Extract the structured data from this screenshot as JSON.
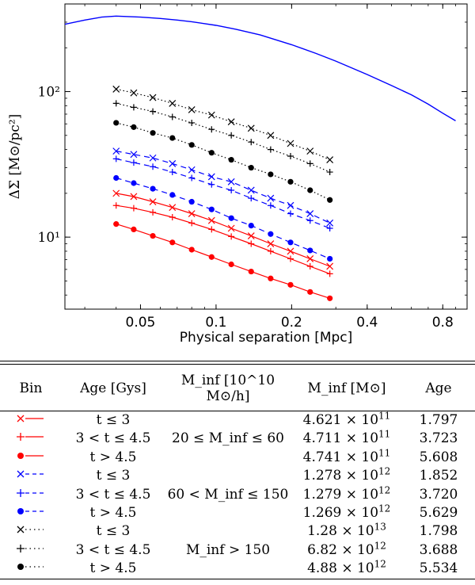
{
  "chart_data": {
    "type": "line",
    "xscale": "log",
    "yscale": "log",
    "xlabel": "Physical separation [Mpc]",
    "ylabel": "ΔΣ [M⊙/pc²]",
    "xlim": [
      0.025,
      1.0
    ],
    "ylim": [
      3.2,
      400
    ],
    "xticks": [
      0.05,
      0.1,
      0.2,
      0.4,
      0.8
    ],
    "xtick_labels": [
      "0.05",
      "0.1",
      "0.2",
      "0.4",
      "0.8"
    ],
    "yticks": [
      10,
      100
    ],
    "ytick_labels": [
      "10¹",
      "10²"
    ],
    "series": [
      {
        "color": "#0000ff",
        "style": "solid",
        "marker": "none",
        "x": [
          0.025,
          0.03,
          0.035,
          0.04,
          0.05,
          0.06,
          0.07,
          0.08,
          0.1,
          0.12,
          0.15,
          0.2,
          0.25,
          0.3,
          0.4,
          0.5,
          0.6,
          0.7,
          0.8,
          0.9
        ],
        "y": [
          290,
          310,
          325,
          330,
          325,
          318,
          310,
          302,
          285,
          268,
          245,
          210,
          183,
          162,
          131,
          110,
          95,
          82,
          71,
          63
        ]
      },
      {
        "color": "#000000",
        "style": "dotted",
        "marker": "x",
        "x": [
          0.04,
          0.047,
          0.056,
          0.067,
          0.08,
          0.096,
          0.115,
          0.138,
          0.165,
          0.198,
          0.237,
          0.284
        ],
        "y": [
          104,
          98,
          91,
          83,
          75,
          69,
          62,
          56,
          50,
          44,
          39,
          34
        ],
        "err": [
          0,
          0,
          0,
          0,
          0,
          0,
          0,
          0,
          0,
          0,
          0,
          0
        ]
      },
      {
        "color": "#000000",
        "style": "dotted",
        "marker": "+",
        "x": [
          0.04,
          0.047,
          0.056,
          0.067,
          0.08,
          0.096,
          0.115,
          0.138,
          0.165,
          0.198,
          0.237,
          0.284
        ],
        "y": [
          83,
          78,
          73,
          67,
          61,
          55,
          50,
          45,
          40,
          36,
          32,
          28
        ],
        "err": [
          0,
          0,
          0,
          0,
          0,
          0,
          0,
          0,
          0,
          0,
          0,
          0
        ]
      },
      {
        "color": "#000000",
        "style": "dotted",
        "marker": "o",
        "x": [
          0.04,
          0.047,
          0.056,
          0.067,
          0.08,
          0.096,
          0.115,
          0.138,
          0.165,
          0.198,
          0.237,
          0.284
        ],
        "y": [
          61,
          57,
          52,
          48,
          43,
          38,
          34,
          30,
          27,
          24,
          21,
          18
        ],
        "err": [
          0,
          0,
          0,
          0,
          0,
          0,
          0,
          0,
          0,
          0,
          0,
          0
        ]
      },
      {
        "color": "#0000ff",
        "style": "dashed",
        "marker": "x",
        "x": [
          0.04,
          0.047,
          0.056,
          0.067,
          0.08,
          0.096,
          0.115,
          0.138,
          0.165,
          0.198,
          0.237,
          0.284
        ],
        "y": [
          39,
          37,
          35,
          32,
          29,
          26,
          24,
          21,
          18.5,
          16.5,
          14.5,
          12.5
        ],
        "err": [
          0,
          0,
          0,
          0,
          0,
          0,
          0,
          0,
          0,
          0,
          0,
          0
        ]
      },
      {
        "color": "#0000ff",
        "style": "dashed",
        "marker": "+",
        "x": [
          0.04,
          0.047,
          0.056,
          0.067,
          0.08,
          0.096,
          0.115,
          0.138,
          0.165,
          0.198,
          0.237,
          0.284
        ],
        "y": [
          34.5,
          32.5,
          30.5,
          28,
          25.5,
          23,
          21,
          18.5,
          16.5,
          14.5,
          13,
          11.5
        ],
        "err": [
          0,
          0,
          0,
          0,
          0,
          0,
          0,
          0,
          0,
          0,
          0,
          0
        ]
      },
      {
        "color": "#0000ff",
        "style": "dashed",
        "marker": "o",
        "x": [
          0.04,
          0.047,
          0.056,
          0.067,
          0.08,
          0.096,
          0.115,
          0.138,
          0.165,
          0.198,
          0.237,
          0.284
        ],
        "y": [
          25.5,
          23.5,
          21.5,
          19.5,
          17.5,
          15.5,
          13.5,
          12,
          10.5,
          9.2,
          8.1,
          7.1
        ],
        "err": [
          0,
          0,
          0,
          0,
          0,
          0,
          0,
          0,
          0,
          0,
          0,
          0
        ]
      },
      {
        "color": "#ff0000",
        "style": "solid",
        "marker": "x",
        "x": [
          0.04,
          0.047,
          0.056,
          0.067,
          0.08,
          0.096,
          0.115,
          0.138,
          0.165,
          0.198,
          0.237,
          0.284
        ],
        "y": [
          20,
          19,
          17.5,
          16,
          14.5,
          13,
          11.5,
          10.2,
          9,
          8,
          7.1,
          6.3
        ],
        "err": [
          0,
          0,
          0,
          0,
          0,
          0,
          0,
          0,
          0,
          0,
          0,
          0
        ]
      },
      {
        "color": "#ff0000",
        "style": "solid",
        "marker": "+",
        "x": [
          0.04,
          0.047,
          0.056,
          0.067,
          0.08,
          0.096,
          0.115,
          0.138,
          0.165,
          0.198,
          0.237,
          0.284
        ],
        "y": [
          16.5,
          15.8,
          14.8,
          13.7,
          12.5,
          11.3,
          10.1,
          9,
          8,
          7.1,
          6.3,
          5.6
        ],
        "err": [
          0,
          0,
          0,
          0,
          0,
          0,
          0,
          0,
          0,
          0,
          0,
          0
        ]
      },
      {
        "color": "#ff0000",
        "style": "solid",
        "marker": "o",
        "x": [
          0.04,
          0.047,
          0.056,
          0.067,
          0.08,
          0.096,
          0.115,
          0.138,
          0.165,
          0.198,
          0.237,
          0.284
        ],
        "y": [
          12.3,
          11.3,
          10.2,
          9.2,
          8.2,
          7.3,
          6.5,
          5.8,
          5.2,
          4.7,
          4.2,
          3.8
        ],
        "err": [
          0,
          0,
          0,
          0,
          0,
          0,
          0,
          0,
          0,
          0,
          0,
          0
        ]
      }
    ],
    "table": {
      "headers": [
        "Bin",
        "Age [Gys]",
        "M_inf [10^10 M⊙/h]",
        "M_inf [M⊙]",
        "Age"
      ],
      "rows": [
        {
          "color": "#ff0000",
          "marker": "x",
          "line": "solid",
          "age_range": "t ≤ 3",
          "m_range": "",
          "m_inf": "4.621 × 10",
          "m_exp": "11",
          "age": "1.797"
        },
        {
          "color": "#ff0000",
          "marker": "+",
          "line": "solid",
          "age_range": "3 < t ≤ 4.5",
          "m_range": "20 ≤ M_inf ≤ 60",
          "m_inf": "4.711 × 10",
          "m_exp": "11",
          "age": "3.723"
        },
        {
          "color": "#ff0000",
          "marker": "o",
          "line": "solid",
          "age_range": "t > 4.5",
          "m_range": "",
          "m_inf": "4.741 × 10",
          "m_exp": "11",
          "age": "5.608"
        },
        {
          "color": "#0000ff",
          "marker": "x",
          "line": "dashed",
          "age_range": "t ≤ 3",
          "m_range": "",
          "m_inf": "1.278 × 10",
          "m_exp": "12",
          "age": "1.852"
        },
        {
          "color": "#0000ff",
          "marker": "+",
          "line": "dashed",
          "age_range": "3 < t ≤ 4.5",
          "m_range": "60 < M_inf ≤ 150",
          "m_inf": "1.279 × 10",
          "m_exp": "12",
          "age": "3.720"
        },
        {
          "color": "#0000ff",
          "marker": "o",
          "line": "dashed",
          "age_range": "t > 4.5",
          "m_range": "",
          "m_inf": "1.269 × 10",
          "m_exp": "12",
          "age": "5.629"
        },
        {
          "color": "#000000",
          "marker": "x",
          "line": "dotted",
          "age_range": "t ≤ 3",
          "m_range": "",
          "m_inf": "1.28 × 10",
          "m_exp": "13",
          "age": "1.798"
        },
        {
          "color": "#000000",
          "marker": "+",
          "line": "dotted",
          "age_range": "3 < t ≤ 4.5",
          "m_range": "M_inf > 150",
          "m_inf": "6.82 × 10",
          "m_exp": "12",
          "age": "3.688"
        },
        {
          "color": "#000000",
          "marker": "o",
          "line": "dotted",
          "age_range": "t > 4.5",
          "m_range": "",
          "m_inf": "4.88 × 10",
          "m_exp": "12",
          "age": "5.534"
        }
      ]
    }
  }
}
